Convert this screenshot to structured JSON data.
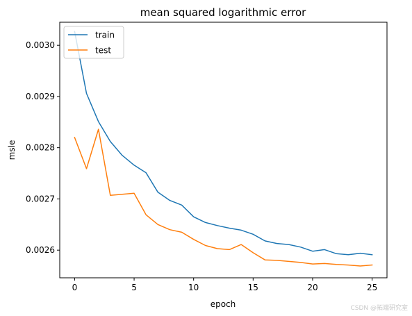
{
  "chart_data": {
    "type": "line",
    "title": "mean squared logarithmic error",
    "xlabel": "epoch",
    "ylabel": "msle",
    "xlim": [
      -1.25,
      26.25
    ],
    "ylim": [
      0.002546,
      0.003045
    ],
    "xticks": [
      0,
      5,
      10,
      15,
      20,
      25
    ],
    "yticks": [
      0.0026,
      0.0027,
      0.0028,
      0.0029,
      0.003
    ],
    "ytick_labels": [
      "0.0026",
      "0.0027",
      "0.0028",
      "0.0029",
      "0.0030"
    ],
    "grid": false,
    "legend_position": "top-left",
    "x": [
      0,
      1,
      2,
      3,
      4,
      5,
      6,
      7,
      8,
      9,
      10,
      11,
      12,
      13,
      14,
      15,
      16,
      17,
      18,
      19,
      20,
      21,
      22,
      23,
      24,
      25
    ],
    "series": [
      {
        "name": "train",
        "color": "#1f77b4",
        "values": [
          0.003027,
          0.002906,
          0.002851,
          0.002812,
          0.002785,
          0.002766,
          0.002751,
          0.002713,
          0.002697,
          0.002688,
          0.002665,
          0.002654,
          0.002648,
          0.002643,
          0.002639,
          0.002631,
          0.002618,
          0.002613,
          0.002611,
          0.002606,
          0.002598,
          0.002601,
          0.002593,
          0.002591,
          0.002594,
          0.002591
        ]
      },
      {
        "name": "test",
        "color": "#ff7f0e",
        "values": [
          0.00282,
          0.002759,
          0.002836,
          0.002707,
          0.002709,
          0.002711,
          0.002669,
          0.00265,
          0.00264,
          0.002635,
          0.002621,
          0.002609,
          0.002603,
          0.002601,
          0.002611,
          0.002595,
          0.002581,
          0.00258,
          0.002578,
          0.002576,
          0.002573,
          0.002574,
          0.002572,
          0.002571,
          0.002569,
          0.002571
        ]
      }
    ]
  },
  "watermark": "CSDN @拓端研究室"
}
